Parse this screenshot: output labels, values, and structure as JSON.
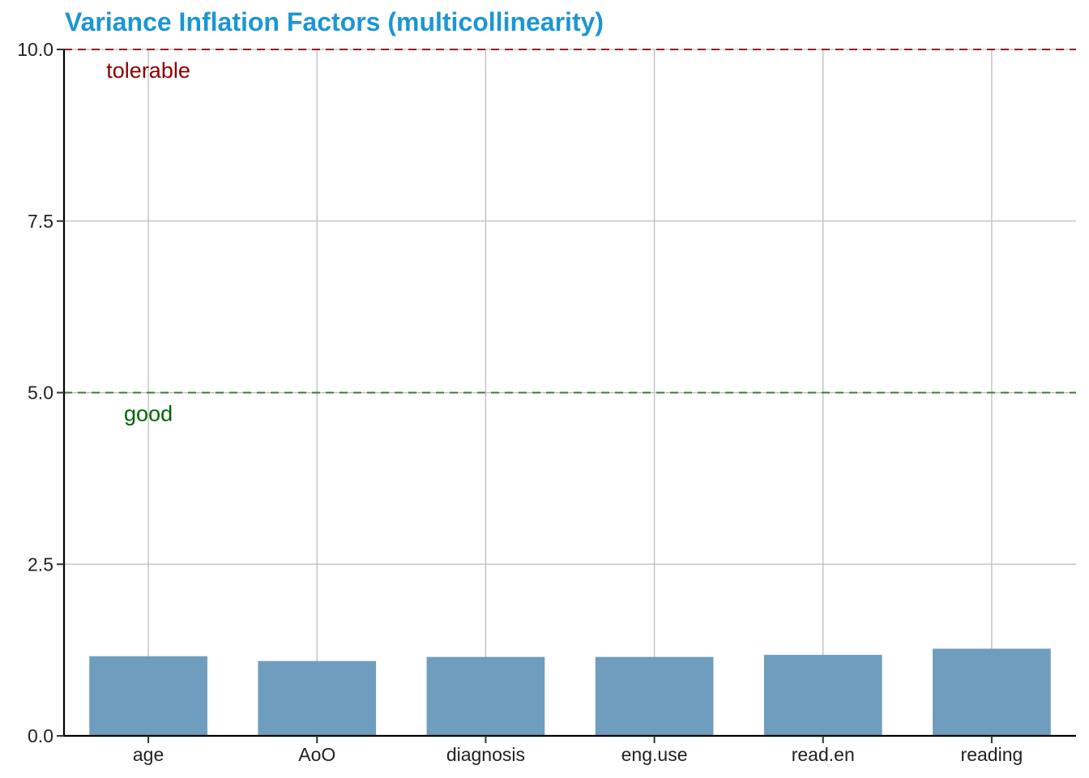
{
  "chart_data": {
    "type": "bar",
    "title": "Variance Inflation Factors (multicollinearity)",
    "xlabel": "",
    "ylabel": "",
    "categories": [
      "age",
      "AoO",
      "diagnosis",
      "eng.use",
      "read.en",
      "reading"
    ],
    "values": [
      1.16,
      1.09,
      1.15,
      1.15,
      1.18,
      1.27
    ],
    "ylim": [
      0,
      10
    ],
    "yticks": [
      0.0,
      2.5,
      5.0,
      7.5,
      10.0
    ],
    "ytick_labels": [
      "0.0",
      "2.5",
      "5.0",
      "7.5",
      "10.0"
    ],
    "grid": true,
    "legend": "none",
    "thresholds": [
      {
        "label": "good",
        "value": 5,
        "color": "#006400",
        "line_color": "#3a7a3a"
      },
      {
        "label": "tolerable",
        "value": 10,
        "color": "#8b0000",
        "line_color": "#8b0000"
      }
    ],
    "colors": {
      "title": "#1b96d4",
      "bar": "#6f9dbd",
      "grid": "#bdbdbd",
      "axis": "#000000"
    }
  }
}
